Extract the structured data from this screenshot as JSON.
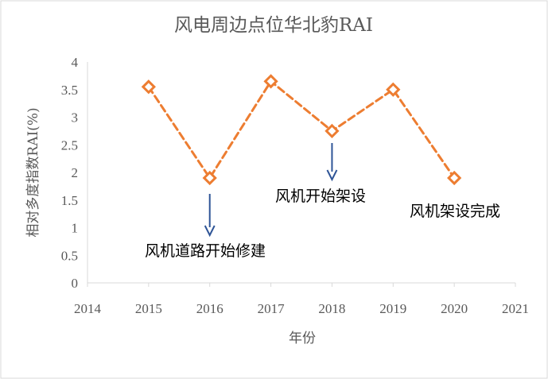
{
  "chart_data": {
    "type": "line",
    "title": "风电周边点位华北豹RAI",
    "xlabel": "年份",
    "ylabel": "相对多度指数RAI(%)",
    "xlim": [
      2014,
      2021
    ],
    "ylim": [
      0,
      4
    ],
    "x_ticks": [
      "2014",
      "2015",
      "2016",
      "2017",
      "2018",
      "2019",
      "2020",
      "2021"
    ],
    "y_ticks": [
      "0",
      "0.5",
      "1",
      "1.5",
      "2",
      "2.5",
      "3",
      "3.5",
      "4"
    ],
    "series": [
      {
        "x": [
          2015,
          2016,
          2017,
          2018,
          2019,
          2020
        ],
        "values": [
          3.55,
          1.9,
          3.65,
          2.75,
          3.5,
          1.9
        ]
      }
    ],
    "annotations": [
      {
        "text": "风机道路开始修建",
        "x": 2016
      },
      {
        "text": "风机开始架设",
        "x": 2018
      },
      {
        "text": "风机架设完成",
        "x": 2020
      }
    ],
    "grid": false,
    "legend": "none",
    "colors": {
      "series": "#ED7D31",
      "arrow": "#2F5597",
      "axis": "#D9D9D9",
      "text": "#595959",
      "annotation_text": "#000000"
    }
  }
}
